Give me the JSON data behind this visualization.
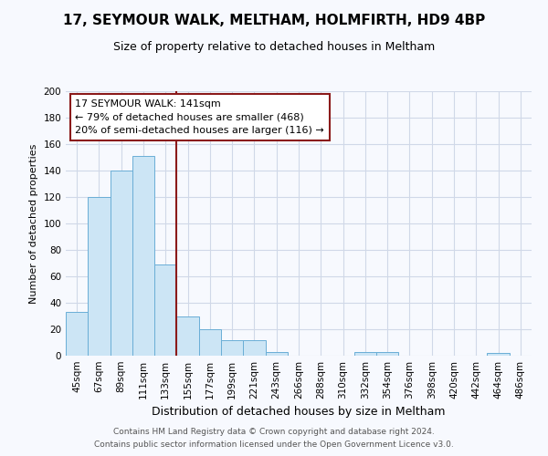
{
  "title": "17, SEYMOUR WALK, MELTHAM, HOLMFIRTH, HD9 4BP",
  "subtitle": "Size of property relative to detached houses in Meltham",
  "xlabel": "Distribution of detached houses by size in Meltham",
  "ylabel": "Number of detached properties",
  "bins": [
    "45sqm",
    "67sqm",
    "89sqm",
    "111sqm",
    "133sqm",
    "155sqm",
    "177sqm",
    "199sqm",
    "221sqm",
    "243sqm",
    "266sqm",
    "288sqm",
    "310sqm",
    "332sqm",
    "354sqm",
    "376sqm",
    "398sqm",
    "420sqm",
    "442sqm",
    "464sqm",
    "486sqm"
  ],
  "values": [
    33,
    120,
    140,
    151,
    69,
    30,
    20,
    12,
    12,
    3,
    0,
    0,
    0,
    3,
    3,
    0,
    0,
    0,
    0,
    2,
    0
  ],
  "bar_color": "#cce5f5",
  "bar_edge_color": "#6aaed6",
  "vline_pos": 4.5,
  "vline_color": "#8b1a1a",
  "annotation_line1": "17 SEYMOUR WALK: 141sqm",
  "annotation_line2": "← 79% of detached houses are smaller (468)",
  "annotation_line3": "20% of semi-detached houses are larger (116) →",
  "annotation_box_color": "white",
  "annotation_box_edge": "#8b1a1a",
  "ylim": [
    0,
    200
  ],
  "yticks": [
    0,
    20,
    40,
    60,
    80,
    100,
    120,
    140,
    160,
    180,
    200
  ],
  "grid_color": "#d0d8e8",
  "bg_color": "#f7f9fe",
  "footer1": "Contains HM Land Registry data © Crown copyright and database right 2024.",
  "footer2": "Contains public sector information licensed under the Open Government Licence v3.0.",
  "title_fontsize": 11,
  "subtitle_fontsize": 9,
  "ylabel_fontsize": 8,
  "xlabel_fontsize": 9,
  "tick_fontsize": 7.5,
  "annot_fontsize": 8
}
